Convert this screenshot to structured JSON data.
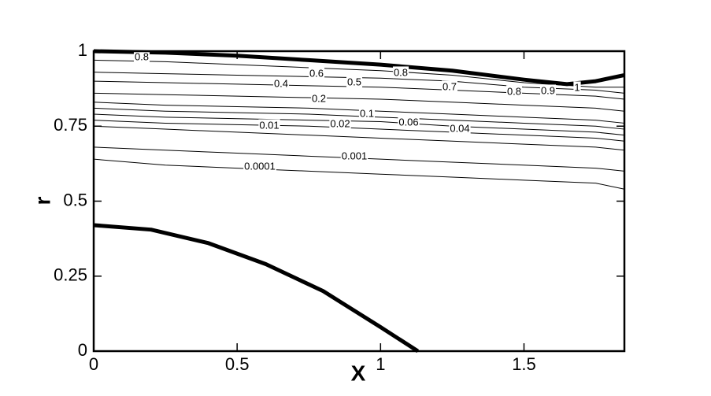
{
  "chart_data": {
    "type": "contour",
    "x_label": "X",
    "y_label": "r",
    "xlim": [
      0,
      1.85
    ],
    "xticks": [
      0,
      0.5,
      1,
      1.5
    ],
    "ylim": [
      0,
      1
    ],
    "yticks": [
      0,
      0.25,
      0.5,
      0.75,
      1
    ],
    "boundaries": [
      {
        "x": [
          0,
          0.25,
          0.5,
          0.75,
          1,
          1.25,
          1.5,
          1.65,
          1.75,
          1.85
        ],
        "values": [
          1,
          0.995,
          0.985,
          0.97,
          0.955,
          0.935,
          0.905,
          0.89,
          0.9,
          0.92
        ]
      },
      {
        "x": [
          0,
          0.2,
          0.4,
          0.6,
          0.8,
          1.0,
          1.13
        ],
        "values": [
          0.42,
          0.405,
          0.36,
          0.29,
          0.2,
          0.08,
          0
        ]
      }
    ],
    "contour_x": [
      0,
      0.25,
      0.5,
      0.75,
      1,
      1.25,
      1.5,
      1.75,
      1.85
    ],
    "contours": [
      {
        "level": 0.0001,
        "values": [
          0.64,
          0.62,
          0.61,
          0.6,
          0.59,
          0.58,
          0.57,
          0.56,
          0.54
        ]
      },
      {
        "level": 0.001,
        "values": [
          0.68,
          0.67,
          0.66,
          0.65,
          0.64,
          0.63,
          0.62,
          0.61,
          0.6
        ]
      },
      {
        "level": 0.01,
        "values": [
          0.75,
          0.74,
          0.73,
          0.72,
          0.71,
          0.7,
          0.69,
          0.68,
          0.67
        ]
      },
      {
        "level": 0.02,
        "values": [
          0.77,
          0.76,
          0.755,
          0.75,
          0.74,
          0.73,
          0.72,
          0.71,
          0.7
        ]
      },
      {
        "level": 0.04,
        "values": [
          0.79,
          0.78,
          0.775,
          0.77,
          0.765,
          0.75,
          0.74,
          0.73,
          0.72
        ]
      },
      {
        "level": 0.06,
        "values": [
          0.81,
          0.8,
          0.795,
          0.79,
          0.78,
          0.77,
          0.76,
          0.75,
          0.74
        ]
      },
      {
        "level": 0.1,
        "values": [
          0.83,
          0.82,
          0.815,
          0.81,
          0.8,
          0.79,
          0.78,
          0.77,
          0.76
        ]
      },
      {
        "level": 0.2,
        "values": [
          0.86,
          0.855,
          0.85,
          0.845,
          0.84,
          0.83,
          0.82,
          0.81,
          0.8
        ]
      },
      {
        "level": 0.4,
        "values": [
          0.9,
          0.895,
          0.89,
          0.885,
          0.88,
          0.87,
          0.86,
          0.85,
          0.84
        ]
      },
      {
        "level": 0.6,
        "values": [
          0.93,
          0.925,
          0.92,
          0.915,
          0.91,
          0.9,
          0.88,
          0.87,
          0.86
        ]
      },
      {
        "level": 0.8,
        "values": [
          0.97,
          0.965,
          0.955,
          0.945,
          0.935,
          0.92,
          0.895,
          0.88,
          0.88
        ]
      }
    ],
    "contour_labels": [
      0.8,
      0.6,
      0.5,
      0.8,
      0.7,
      0.8,
      0.9,
      1,
      0.4,
      0.2,
      0.1,
      0.06,
      0.04,
      0.01,
      0.02,
      0.0001,
      0.001
    ]
  }
}
